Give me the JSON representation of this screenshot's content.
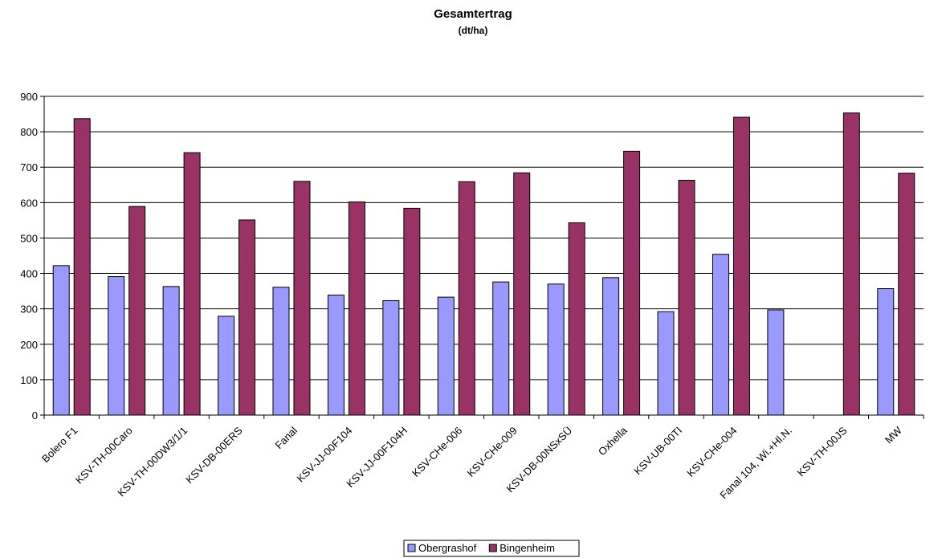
{
  "chart_data": {
    "type": "bar",
    "title": "Gesamtertrag",
    "subtitle": "(dt/ha)",
    "xlabel": "",
    "ylabel": "",
    "ylim": [
      0,
      900
    ],
    "yticks": [
      "0",
      "100",
      "200",
      "300",
      "400",
      "500",
      "600",
      "700",
      "800",
      "900"
    ],
    "grid": true,
    "legend_position": "bottom",
    "categories": [
      "Bolero F1",
      "KSV-TH-00Caro",
      "KSV-TH-00DW3/1/1",
      "KSV-DB-00ERS",
      "Fanal",
      "KSV-JJ-00F104",
      "KSV-JJ-00F104H",
      "KSV-CHe-006",
      "KSV-CHe-009",
      "KSV-DB-00NSxSÜ",
      "Oxhella",
      "KSV-UB-00TI",
      "KSV-CHe-004",
      "Fanal 104, Wi.+Hl.N.",
      "KSV-TH-00JS",
      "MW"
    ],
    "series": [
      {
        "name": "Obergrashof",
        "color": "#9999ff",
        "values": [
          422,
          391,
          363,
          279,
          361,
          339,
          323,
          333,
          376,
          370,
          388,
          292,
          454,
          297,
          null,
          357
        ]
      },
      {
        "name": "Bingenheim",
        "color": "#993366",
        "values": [
          837,
          589,
          741,
          551,
          660,
          602,
          584,
          659,
          684,
          543,
          745,
          663,
          841,
          null,
          853,
          683
        ]
      }
    ]
  }
}
